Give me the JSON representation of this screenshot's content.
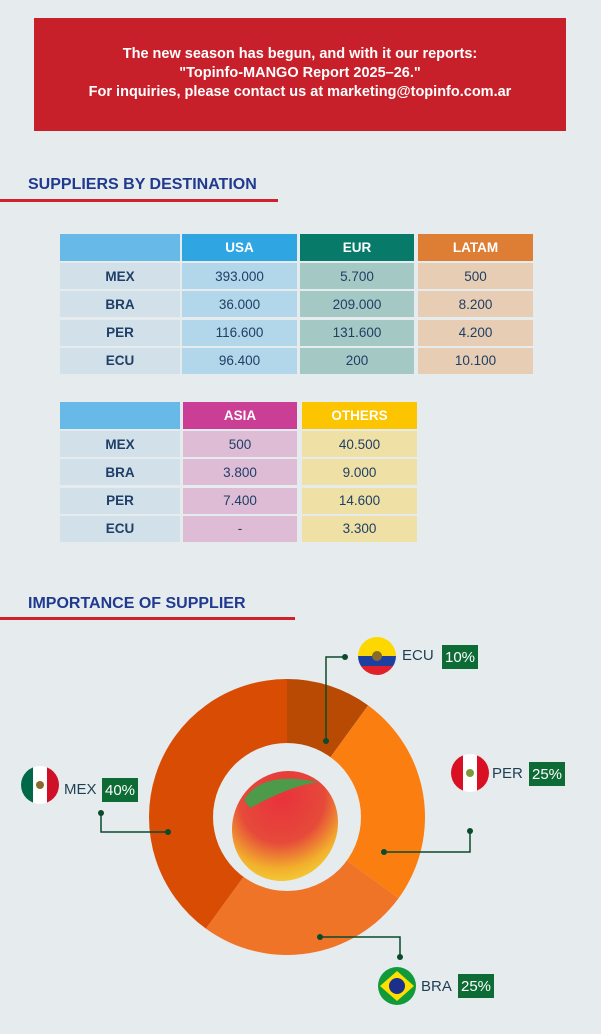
{
  "banner": {
    "line1": "The new season has begun, and with it our reports:",
    "line2": "\"Topinfo-MANGO Report 2025–26.\"",
    "line3": "For inquiries, please contact us at marketing@topinfo.com.ar"
  },
  "section1_title": "SUPPLIERS BY DESTINATION",
  "table1": {
    "headers": [
      "USA",
      "EUR",
      "LATAM"
    ],
    "rows": [
      [
        "MEX",
        "393.000",
        "5.700",
        "500"
      ],
      [
        "BRA",
        "36.000",
        "209.000",
        "8.200"
      ],
      [
        "PER",
        "116.600",
        "131.600",
        "4.200"
      ],
      [
        "ECU",
        "96.400",
        "200",
        "10.100"
      ]
    ]
  },
  "table2": {
    "headers": [
      "ASIA",
      "OTHERS"
    ],
    "rows": [
      [
        "MEX",
        "500",
        "40.500"
      ],
      [
        "BRA",
        "3.800",
        "9.000"
      ],
      [
        "PER",
        "7.400",
        "14.600"
      ],
      [
        "ECU",
        "-",
        "3.300"
      ]
    ]
  },
  "colors": {
    "usa": "#2fa5e2",
    "eur": "#087a6a",
    "latam": "#de7e34",
    "asia": "#cb3e96",
    "others": "#fdc400"
  },
  "chart_data": {
    "type": "pie",
    "title": "IMPORTANCE OF SUPPLIER",
    "categories": [
      "ECU",
      "PER",
      "BRA",
      "MEX"
    ],
    "values": [
      10,
      25,
      25,
      40
    ],
    "labels": [
      "10%",
      "25%",
      "25%",
      "40%"
    ],
    "colors": [
      "#b84a04",
      "#fb7e10",
      "#f07428",
      "#d84c04"
    ]
  }
}
